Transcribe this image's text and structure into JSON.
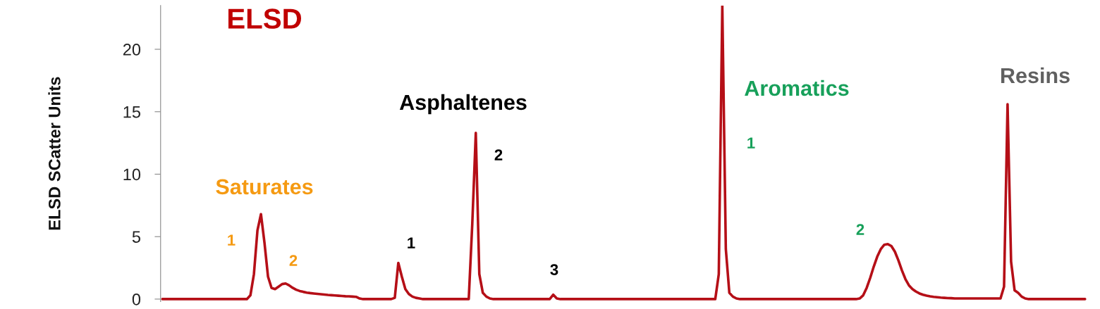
{
  "chart_data": {
    "type": "line",
    "title": "ELSD",
    "ylabel": "ELSD SCatter Units",
    "categories": [
      null,
      null,
      null,
      null,
      null,
      null,
      null,
      null,
      null,
      null,
      null,
      null,
      null,
      null,
      null,
      null,
      null,
      null,
      null,
      null,
      null,
      null,
      null,
      null,
      null,
      null,
      null,
      null,
      null,
      null,
      null,
      null,
      null,
      null,
      null,
      null,
      null,
      null,
      null,
      null,
      null,
      null,
      null,
      null,
      null,
      null,
      null,
      null,
      null,
      null,
      null,
      null,
      null,
      null,
      null,
      null,
      null,
      null,
      null,
      null,
      null,
      null,
      null,
      null,
      null,
      null,
      null,
      null,
      null,
      null,
      null,
      null,
      null,
      null,
      null,
      null,
      null,
      null,
      null,
      null,
      null,
      null,
      null,
      null,
      null,
      null,
      null,
      null,
      null,
      null,
      null,
      null,
      null,
      null,
      null,
      null,
      null,
      null,
      null,
      null,
      null,
      null,
      null,
      null,
      null,
      null,
      null,
      null,
      null,
      null,
      null,
      null,
      null,
      null,
      null,
      null,
      null,
      null,
      null,
      null,
      null,
      null,
      null,
      null,
      null,
      null,
      null,
      null,
      null,
      null,
      null,
      null,
      null,
      null,
      null,
      null,
      null,
      null,
      null,
      null,
      null,
      null,
      null,
      null,
      null,
      null,
      null,
      null,
      null,
      null,
      null,
      null,
      null,
      null,
      null,
      null,
      null,
      null,
      null,
      null,
      null,
      null,
      null,
      null,
      null,
      null,
      null,
      null,
      null,
      null,
      null,
      null,
      null,
      null,
      null,
      null,
      null,
      null,
      null,
      null,
      null,
      null,
      null,
      null,
      null,
      null,
      null,
      null,
      null,
      null,
      null,
      null,
      null,
      null,
      null,
      null,
      null,
      null,
      null,
      null,
      null,
      null,
      null,
      null,
      null,
      null,
      null,
      null,
      null,
      null,
      null,
      null,
      null,
      null,
      null,
      null,
      null,
      null,
      null,
      null,
      null,
      null,
      null,
      null,
      null,
      null,
      null,
      null,
      null,
      null,
      null,
      null,
      null,
      null,
      null,
      null,
      null,
      null,
      null,
      null,
      null,
      null,
      null,
      null,
      null,
      null,
      null,
      null,
      null,
      null,
      null,
      null,
      null,
      null,
      null,
      null,
      null,
      null,
      null,
      null,
      null,
      null,
      null
    ],
    "series": [
      {
        "color": "#b50f17",
        "values": [
          0,
          0,
          0,
          0,
          0,
          0,
          0,
          0,
          0,
          0,
          0,
          0,
          0,
          0,
          0,
          0,
          0,
          0,
          0,
          0,
          0,
          0,
          0,
          0,
          0,
          0.3,
          2.0,
          5.5,
          6.8,
          4.5,
          1.8,
          0.9,
          0.8,
          1.0,
          1.2,
          1.25,
          1.1,
          0.9,
          0.75,
          0.65,
          0.58,
          0.52,
          0.48,
          0.45,
          0.42,
          0.39,
          0.36,
          0.33,
          0.31,
          0.29,
          0.27,
          0.25,
          0.23,
          0.22,
          0.2,
          0.18,
          0.05,
          0,
          0,
          0,
          0,
          0,
          0,
          0,
          0,
          0,
          0.1,
          2.9,
          1.8,
          0.8,
          0.4,
          0.2,
          0.1,
          0.05,
          0,
          0,
          0,
          0,
          0,
          0,
          0,
          0,
          0,
          0,
          0,
          0,
          0,
          0,
          6.0,
          13.3,
          2.0,
          0.5,
          0.2,
          0.05,
          0,
          0,
          0,
          0,
          0,
          0,
          0,
          0,
          0,
          0,
          0,
          0,
          0,
          0,
          0,
          0,
          0,
          0.35,
          0.05,
          0,
          0,
          0,
          0,
          0,
          0,
          0,
          0,
          0,
          0,
          0,
          0,
          0,
          0,
          0,
          0,
          0,
          0,
          0,
          0,
          0,
          0,
          0,
          0,
          0,
          0,
          0,
          0,
          0,
          0,
          0,
          0,
          0,
          0,
          0,
          0,
          0,
          0,
          0,
          0,
          0,
          0,
          0,
          0,
          0,
          2.0,
          23.5,
          4.0,
          0.5,
          0.2,
          0.05,
          0,
          0,
          0,
          0,
          0,
          0,
          0,
          0,
          0,
          0,
          0,
          0,
          0,
          0,
          0,
          0,
          0,
          0,
          0,
          0,
          0,
          0,
          0,
          0,
          0,
          0,
          0,
          0,
          0,
          0,
          0,
          0,
          0,
          0,
          0.05,
          0.3,
          0.9,
          1.7,
          2.6,
          3.4,
          4.0,
          4.35,
          4.4,
          4.25,
          3.8,
          3.1,
          2.3,
          1.6,
          1.1,
          0.8,
          0.6,
          0.45,
          0.35,
          0.28,
          0.22,
          0.18,
          0.15,
          0.12,
          0.1,
          0.08,
          0.07,
          0.05,
          0.05,
          0.05,
          0.05,
          0.05,
          0.05,
          0.05,
          0.05,
          0.05,
          0.05,
          0.05,
          0.05,
          0.05,
          0.05,
          1.0,
          15.6,
          3.0,
          0.7,
          0.5,
          0.2,
          0.05,
          0,
          0,
          0,
          0,
          0,
          0,
          0,
          0,
          0,
          0,
          0,
          0,
          0,
          0,
          0,
          0,
          0
        ]
      }
    ],
    "ylim": [
      -0.2,
      23.5
    ],
    "yticks": [
      0,
      5,
      10,
      15,
      20
    ],
    "tick_labels": "y",
    "grid": false,
    "legend": false,
    "annotations": [
      "Saturates",
      "1",
      "2",
      "Asphaltenes",
      "1",
      "2",
      "3",
      "Aromatics",
      "1",
      "2",
      "Resins"
    ]
  }
}
